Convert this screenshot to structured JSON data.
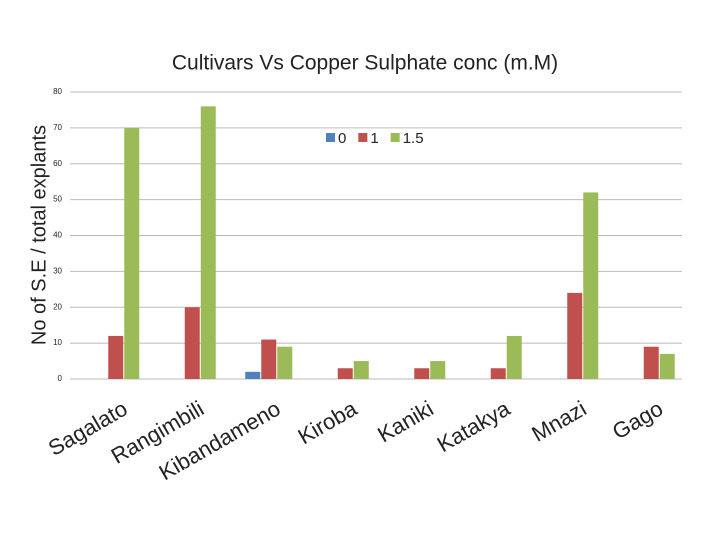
{
  "chart_data": {
    "type": "bar",
    "title": "Cultivars Vs Copper Sulphate conc (m.M)",
    "y_label": "No  of S.E / total explants",
    "categories": [
      "Sagalato",
      "Rangimbili",
      "Kibandameno",
      "Kiroba",
      "Kaniki",
      "Katakya",
      "Mnazi",
      "Gago"
    ],
    "series": [
      {
        "name": "0",
        "color": "#4f81bd",
        "values": [
          0,
          0,
          2,
          0,
          0,
          0,
          0,
          0
        ]
      },
      {
        "name": "1",
        "color": "#c0504d",
        "values": [
          12,
          20,
          11,
          3,
          3,
          3,
          24,
          9
        ]
      },
      {
        "name": "1.5",
        "color": "#9bbb59",
        "values": [
          70,
          76,
          9,
          5,
          5,
          12,
          52,
          7
        ]
      }
    ],
    "ylim": [
      0,
      80
    ],
    "yticks": [
      0,
      10,
      20,
      30,
      40,
      50,
      60,
      70,
      80
    ],
    "grid": true,
    "legend": "top"
  }
}
